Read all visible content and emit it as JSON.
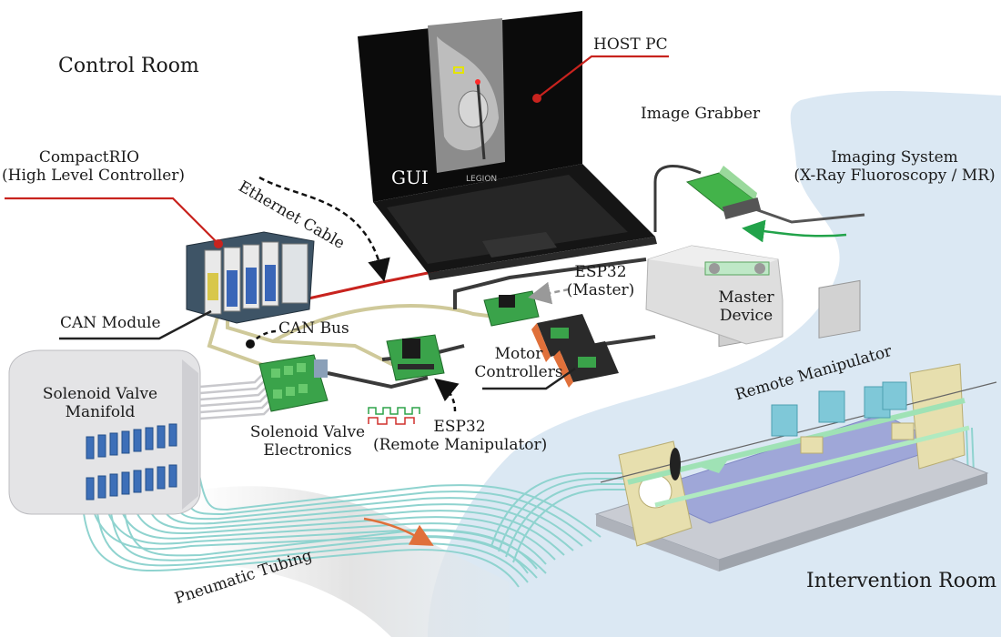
{
  "rooms": {
    "control": "Control Room",
    "intervention": "Intervention Room"
  },
  "labels": {
    "host_pc": "HOST PC",
    "gui": "GUI",
    "laptop_brand": "LEGION",
    "image_grabber": "Image Grabber",
    "imaging_system_line1": "Imaging System",
    "imaging_system_line2": "(X-Ray Fluoroscopy / MR)",
    "compactrio_line1": "CompactRIO",
    "compactrio_line2": "(High Level Controller)",
    "ethernet_cable": "Ethernet Cable",
    "can_module": "CAN Module",
    "can_bus": "CAN Bus",
    "esp32_master_line1": "ESP32",
    "esp32_master_line2": "(Master)",
    "master_device_line1": "Master",
    "master_device_line2": "Device",
    "motor_controllers_line1": "Motor",
    "motor_controllers_line2": "Controllers",
    "solenoid_manifold_line1": "Solenoid Valve",
    "solenoid_manifold_line2": "Manifold",
    "solenoid_electronics_line1": "Solenoid Valve",
    "solenoid_electronics_line2": "Electronics",
    "esp32_remote_line1": "ESP32",
    "esp32_remote_line2": "(Remote Manipulator)",
    "remote_manipulator": "Remote Manipulator",
    "pneumatic_tubing": "Pneumatic Tubing"
  },
  "colors": {
    "intervention_zone": "#dbe8f3",
    "tubing": "#8fd3cf",
    "device_frame": "#e7dfae",
    "rail": "#9fa7d8",
    "pcb_green": "#3aa34a",
    "controller_orange": "#e0703a",
    "leader_red": "#c8231e",
    "grabber_green": "#43b34a",
    "can_cable": "#cfc99a"
  }
}
